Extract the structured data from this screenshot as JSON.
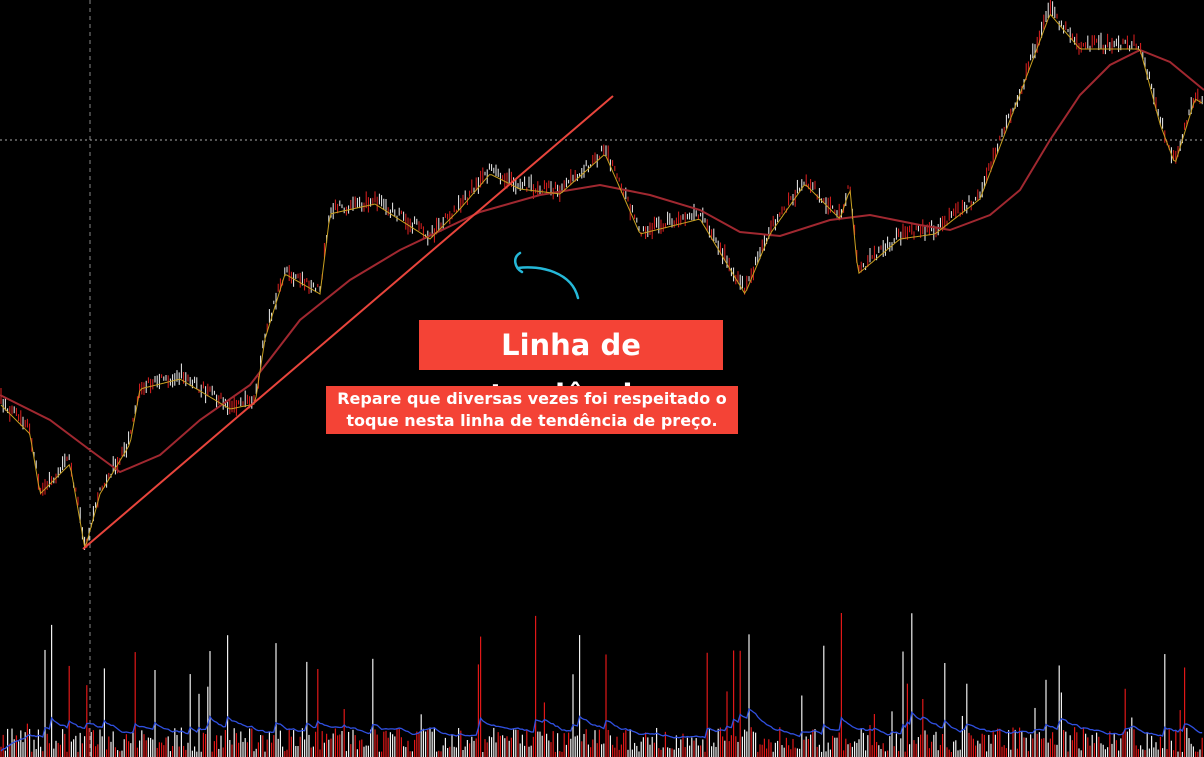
{
  "annotation": {
    "title": "Linha de tendência",
    "note_lines": [
      "Repare que diversas vezes foi respeitado o",
      "toque nesta linha de tendência de preço."
    ]
  }
}
